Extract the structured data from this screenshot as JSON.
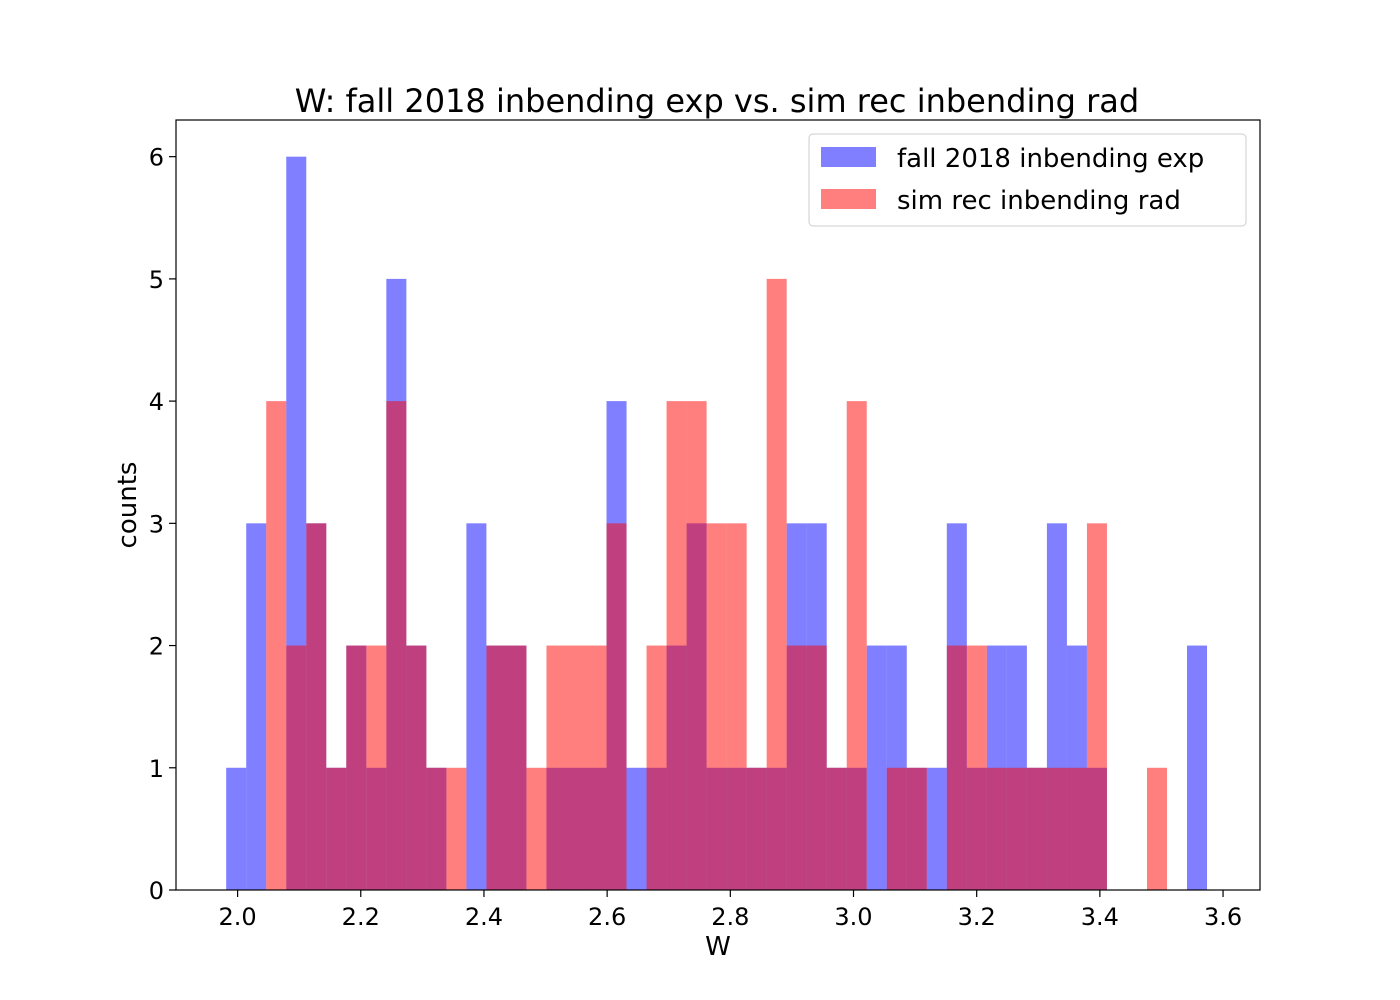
{
  "chart_data": {
    "type": "bar",
    "title": "W: fall 2018 inbending exp  vs. sim rec inbending rad",
    "xlabel": "W",
    "ylabel": "counts",
    "xlim": [
      1.9,
      3.66
    ],
    "ylim": [
      0,
      6.3
    ],
    "xticks": [
      "2.0",
      "2.2",
      "2.4",
      "2.6",
      "2.8",
      "3.0",
      "3.2",
      "3.4",
      "3.6"
    ],
    "xtick_values": [
      2.0,
      2.2,
      2.4,
      2.6,
      2.8,
      3.0,
      3.2,
      3.4,
      3.6
    ],
    "yticks": [
      "0",
      "1",
      "2",
      "3",
      "4",
      "5",
      "6"
    ],
    "ytick_values": [
      0,
      1,
      2,
      3,
      4,
      5,
      6
    ],
    "legend_position": "top-right",
    "series": [
      {
        "name": "fall 2018 inbending exp",
        "color": "#0000ff",
        "opacity": 0.5,
        "bin_start": 1.9815,
        "bin_width": 0.0325,
        "counts": [
          1,
          3,
          0,
          6,
          3,
          1,
          2,
          1,
          5,
          2,
          1,
          0,
          3,
          2,
          2,
          0,
          1,
          1,
          1,
          4,
          1,
          1,
          2,
          3,
          1,
          1,
          1,
          1,
          3,
          3,
          1,
          1,
          2,
          2,
          1,
          1,
          3,
          1,
          2,
          2,
          1,
          3,
          2,
          1,
          0,
          0,
          0,
          0,
          2
        ]
      },
      {
        "name": "sim rec inbending rad",
        "color": "#ff0000",
        "opacity": 0.5,
        "bin_start": 1.9815,
        "bin_width": 0.0325,
        "counts": [
          0,
          0,
          4,
          2,
          3,
          1,
          2,
          2,
          4,
          2,
          1,
          1,
          0,
          2,
          2,
          1,
          2,
          2,
          2,
          3,
          0,
          2,
          4,
          4,
          3,
          3,
          1,
          5,
          2,
          2,
          1,
          4,
          0,
          1,
          1,
          0,
          2,
          2,
          1,
          1,
          1,
          1,
          1,
          3,
          0,
          0,
          1,
          0,
          0
        ]
      }
    ]
  }
}
